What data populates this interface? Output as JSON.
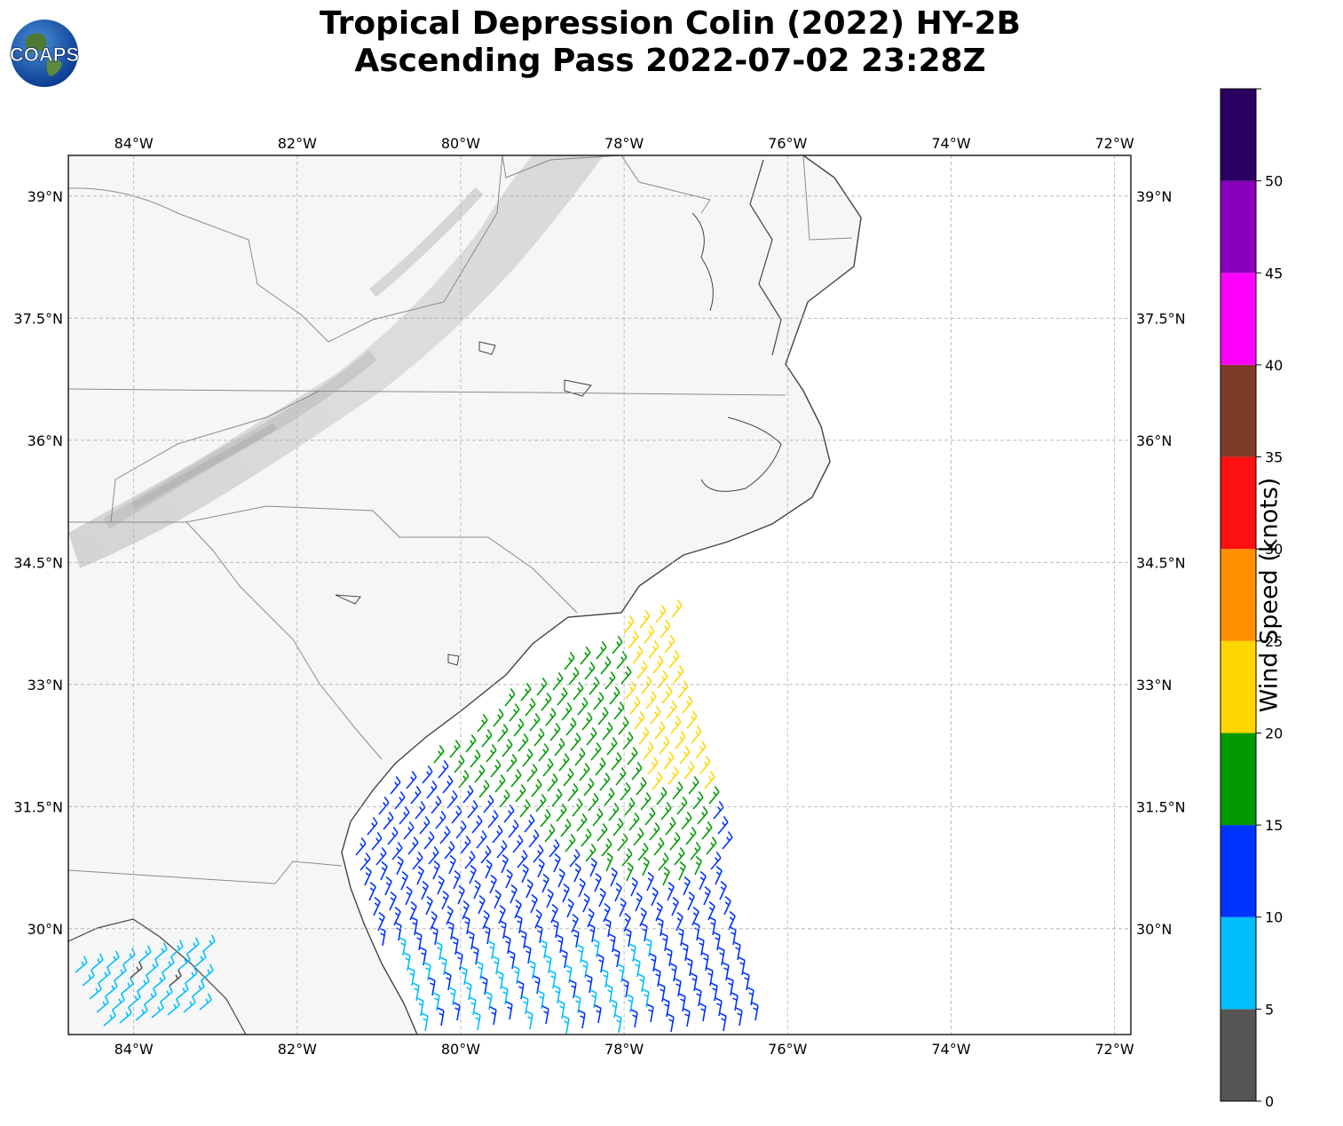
{
  "title": {
    "line1": "Tropical Depression Colin (2022) HY-2B",
    "line2": "Ascending Pass 2022-07-02 23:28Z"
  },
  "logo": {
    "icon": "globe-logo-icon",
    "text": "COAPS"
  },
  "map": {
    "lon_labels": [
      "84°W",
      "82°W",
      "80°W",
      "78°W",
      "76°W",
      "74°W",
      "72°W"
    ],
    "lat_labels": [
      "39°N",
      "37.5°N",
      "36°N",
      "34.5°N",
      "33°N",
      "31.5°N",
      "30°N"
    ],
    "extent": {
      "lon": [
        -84.8,
        -71.8
      ],
      "lat": [
        28.7,
        39.5
      ]
    },
    "gridlines": true,
    "basemap": "grayscale terrain"
  },
  "colorbar": {
    "label": "Wind Speed (knots)",
    "ticks": [
      "0",
      "5",
      "10",
      "15",
      "20",
      "25",
      "30",
      "35",
      "40",
      "45",
      "50"
    ],
    "bins": [
      {
        "range": [
          0,
          5
        ],
        "color": "#555555"
      },
      {
        "range": [
          5,
          10
        ],
        "color": "#00bfff"
      },
      {
        "range": [
          10,
          15
        ],
        "color": "#0033ff"
      },
      {
        "range": [
          15,
          20
        ],
        "color": "#009900"
      },
      {
        "range": [
          20,
          25
        ],
        "color": "#ffd700"
      },
      {
        "range": [
          25,
          30
        ],
        "color": "#ff9000"
      },
      {
        "range": [
          30,
          35
        ],
        "color": "#ff1010"
      },
      {
        "range": [
          35,
          40
        ],
        "color": "#7f3b2a"
      },
      {
        "range": [
          40,
          45
        ],
        "color": "#ff00ff"
      },
      {
        "range": [
          45,
          50
        ],
        "color": "#8800bb"
      },
      {
        "range": [
          50,
          55
        ],
        "color": "#2a0060"
      }
    ]
  },
  "wind_barbs": {
    "units": "knots",
    "swath_colors": {
      "calm": "#555555",
      "light": "#00bfff",
      "moderate": "#0033ff",
      "fresh": "#009900",
      "strong": "#ffd700"
    }
  }
}
